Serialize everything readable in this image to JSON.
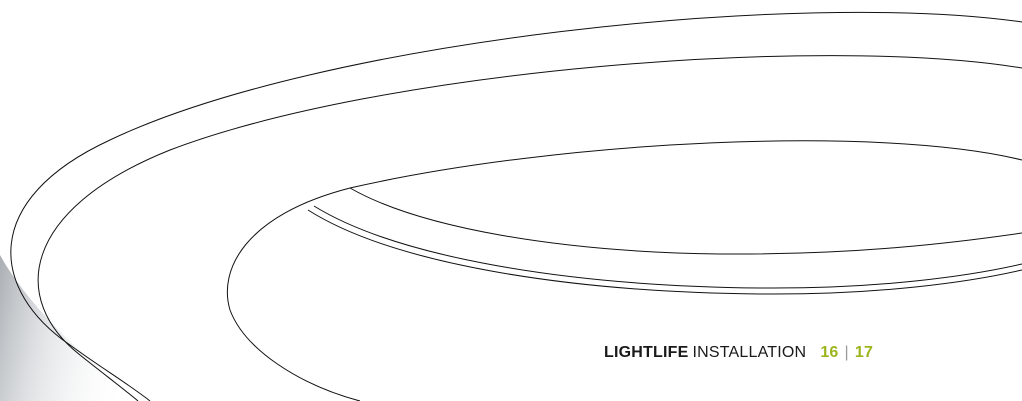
{
  "footer": {
    "brand": "LIGHTLIFE",
    "section": "INSTALLATION",
    "page_left": "16",
    "separator": "|",
    "page_right": "17"
  },
  "colors": {
    "accent": "#9cb51c",
    "text": "#1a1a1a",
    "line": "#111111",
    "shadow_start": "#9aa0a6"
  },
  "illustration": {
    "icon": "ring-luminaire-line-drawing"
  }
}
